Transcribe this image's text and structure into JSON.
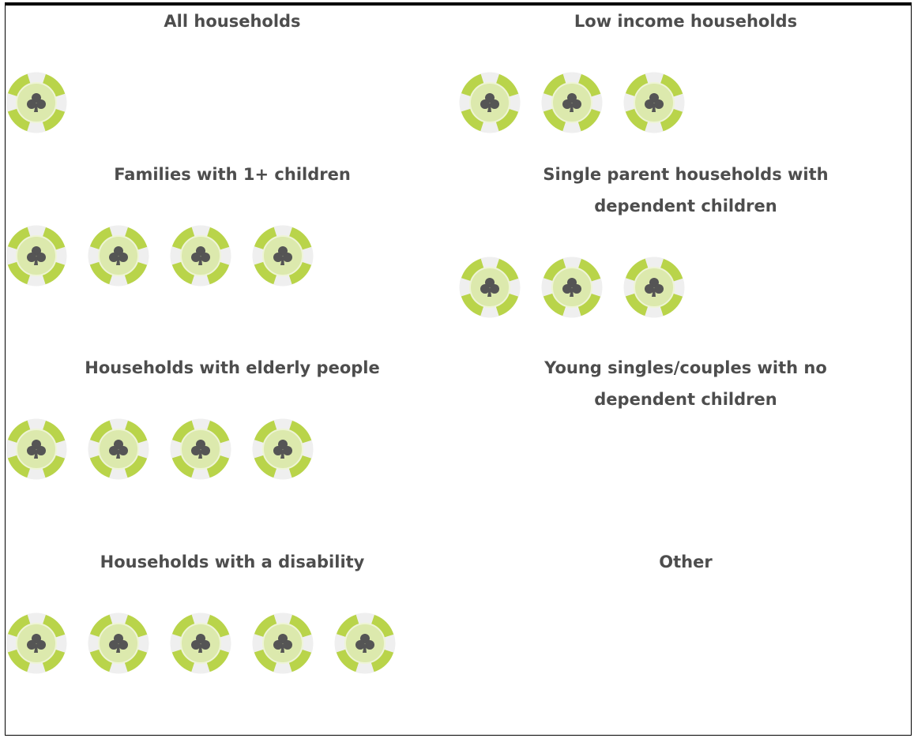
{
  "cells": [
    {
      "title": [
        "All households"
      ],
      "chips": 1
    },
    {
      "title": [
        "Low income households"
      ],
      "chips": 3
    },
    {
      "title": [
        "Families with 1+ children"
      ],
      "chips": 4
    },
    {
      "title": [
        "Single parent households with",
        "dependent children"
      ],
      "chips": 3
    },
    {
      "title": [
        "Households with elderly people"
      ],
      "chips": 4
    },
    {
      "title": [
        "Young singles/couples with no",
        "dependent children"
      ],
      "chips": 0
    },
    {
      "title": [
        "Households with a disability"
      ],
      "chips": 5
    },
    {
      "title": [
        "Other"
      ],
      "chips": 0
    }
  ]
}
